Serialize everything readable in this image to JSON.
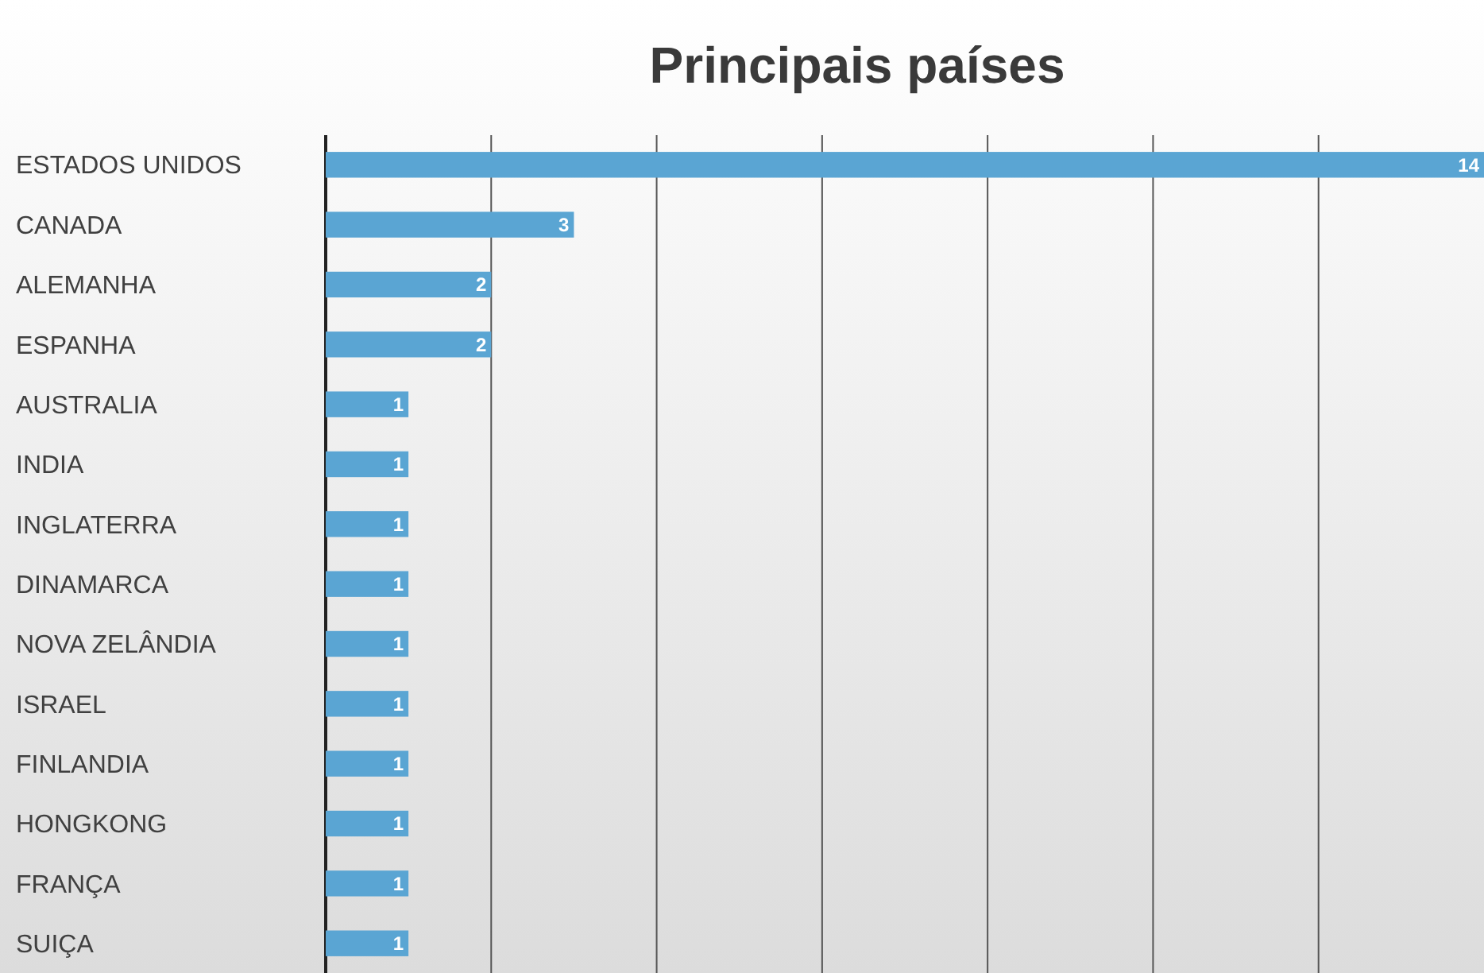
{
  "chart_data": {
    "type": "bar",
    "title": "Principais países",
    "orientation": "horizontal",
    "categories": [
      "ESTADOS UNIDOS",
      "CANADA",
      "ALEMANHA",
      "ESPANHA",
      "AUSTRALIA",
      "INDIA",
      "INGLATERRA",
      "DINAMARCA",
      "NOVA ZELÂNDIA",
      "ISRAEL",
      "FINLANDIA",
      "HONGKONG",
      "FRANÇA",
      "SUIÇA"
    ],
    "values": [
      14,
      3,
      2,
      2,
      1,
      1,
      1,
      1,
      1,
      1,
      1,
      1,
      1,
      1
    ],
    "color": "#5aa5d3",
    "data_labels": true,
    "grid": "x",
    "tick_labels": "y",
    "xlim": [
      0,
      14
    ],
    "xticks": [
      {
        "value": 0,
        "label": null
      },
      {
        "value": 2,
        "label": null
      },
      {
        "value": 4,
        "label": null
      },
      {
        "value": 6,
        "label": null
      },
      {
        "value": 8,
        "label": null
      },
      {
        "value": 10,
        "label": null
      },
      {
        "value": 12,
        "label": null
      }
    ]
  }
}
